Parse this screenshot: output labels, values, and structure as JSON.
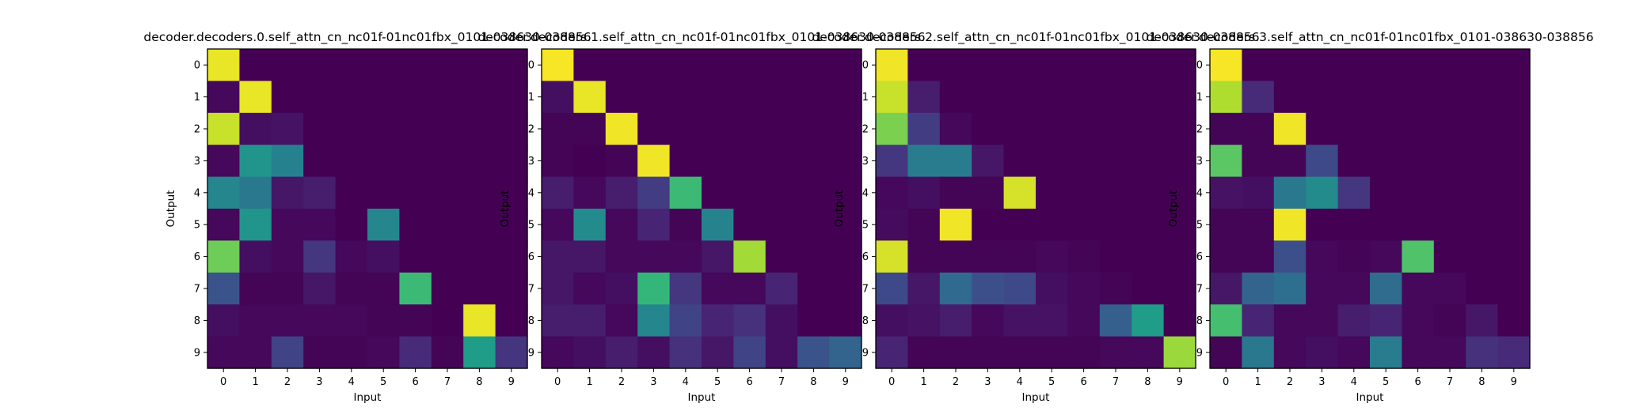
{
  "chart_data": [
    {
      "type": "heatmap",
      "title": "decoder.decoders.0.self_attn_cn_nc01f-01nc01fbx_0101-038630-038856",
      "xlabel": "Input",
      "ylabel": "Output",
      "x_ticks": [
        "0",
        "1",
        "2",
        "3",
        "4",
        "5",
        "6",
        "7",
        "8",
        "9"
      ],
      "y_ticks": [
        "0",
        "1",
        "2",
        "3",
        "4",
        "5",
        "6",
        "7",
        "8",
        "9"
      ],
      "colormap": "viridis",
      "value_range": [
        0,
        1
      ],
      "values": [
        [
          0.97,
          0.0,
          0.0,
          0.0,
          0.0,
          0.0,
          0.0,
          0.0,
          0.0,
          0.0
        ],
        [
          0.02,
          0.97,
          0.0,
          0.0,
          0.0,
          0.0,
          0.0,
          0.0,
          0.0,
          0.0
        ],
        [
          0.92,
          0.04,
          0.05,
          0.0,
          0.0,
          0.0,
          0.0,
          0.0,
          0.0,
          0.0
        ],
        [
          0.02,
          0.52,
          0.44,
          0.0,
          0.0,
          0.0,
          0.0,
          0.0,
          0.0,
          0.0
        ],
        [
          0.46,
          0.4,
          0.06,
          0.08,
          0.0,
          0.0,
          0.0,
          0.0,
          0.0,
          0.0
        ],
        [
          0.02,
          0.52,
          0.02,
          0.02,
          0.0,
          0.46,
          0.0,
          0.0,
          0.0,
          0.0
        ],
        [
          0.78,
          0.04,
          0.02,
          0.16,
          0.02,
          0.04,
          0.0,
          0.0,
          0.0,
          0.0
        ],
        [
          0.26,
          0.01,
          0.01,
          0.06,
          0.01,
          0.01,
          0.68,
          0.0,
          0.0,
          0.0
        ],
        [
          0.04,
          0.02,
          0.02,
          0.02,
          0.02,
          0.01,
          0.01,
          0.0,
          0.97,
          0.0
        ],
        [
          0.02,
          0.02,
          0.2,
          0.01,
          0.01,
          0.02,
          0.12,
          0.01,
          0.55,
          0.15
        ]
      ]
    },
    {
      "type": "heatmap",
      "title": "decoder.decoders.1.self_attn_cn_nc01f-01nc01fbx_0101-038630-038856",
      "xlabel": "Input",
      "ylabel": "Output",
      "x_ticks": [
        "0",
        "1",
        "2",
        "3",
        "4",
        "5",
        "6",
        "7",
        "8",
        "9"
      ],
      "y_ticks": [
        "0",
        "1",
        "2",
        "3",
        "4",
        "5",
        "6",
        "7",
        "8",
        "9"
      ],
      "colormap": "viridis",
      "value_range": [
        0,
        1
      ],
      "values": [
        [
          0.99,
          0.0,
          0.0,
          0.0,
          0.0,
          0.0,
          0.0,
          0.0,
          0.0,
          0.0
        ],
        [
          0.04,
          0.97,
          0.0,
          0.0,
          0.0,
          0.0,
          0.0,
          0.0,
          0.0,
          0.0
        ],
        [
          0.01,
          0.01,
          0.98,
          0.0,
          0.0,
          0.0,
          0.0,
          0.0,
          0.0,
          0.0
        ],
        [
          0.01,
          0.0,
          0.01,
          0.98,
          0.0,
          0.0,
          0.0,
          0.0,
          0.0,
          0.0
        ],
        [
          0.08,
          0.02,
          0.08,
          0.18,
          0.68,
          0.0,
          0.0,
          0.0,
          0.0,
          0.0
        ],
        [
          0.02,
          0.48,
          0.02,
          0.1,
          0.01,
          0.45,
          0.0,
          0.0,
          0.0,
          0.0
        ],
        [
          0.06,
          0.06,
          0.02,
          0.02,
          0.02,
          0.06,
          0.86,
          0.0,
          0.0,
          0.0
        ],
        [
          0.06,
          0.02,
          0.04,
          0.66,
          0.16,
          0.02,
          0.02,
          0.1,
          0.0,
          0.0
        ],
        [
          0.08,
          0.08,
          0.02,
          0.46,
          0.2,
          0.1,
          0.14,
          0.04,
          0.0,
          0.0
        ],
        [
          0.02,
          0.04,
          0.08,
          0.04,
          0.14,
          0.06,
          0.2,
          0.04,
          0.26,
          0.32
        ]
      ]
    },
    {
      "type": "heatmap",
      "title": "decoder.decoders.2.self_attn_cn_nc01f-01nc01fbx_0101-038630-038856",
      "xlabel": "Input",
      "ylabel": "Output",
      "x_ticks": [
        "0",
        "1",
        "2",
        "3",
        "4",
        "5",
        "6",
        "7",
        "8",
        "9"
      ],
      "y_ticks": [
        "0",
        "1",
        "2",
        "3",
        "4",
        "5",
        "6",
        "7",
        "8",
        "9"
      ],
      "colormap": "viridis",
      "value_range": [
        0,
        1
      ],
      "values": [
        [
          0.98,
          0.0,
          0.0,
          0.0,
          0.0,
          0.0,
          0.0,
          0.0,
          0.0,
          0.0
        ],
        [
          0.92,
          0.08,
          0.0,
          0.0,
          0.0,
          0.0,
          0.0,
          0.0,
          0.0,
          0.0
        ],
        [
          0.8,
          0.18,
          0.02,
          0.0,
          0.0,
          0.0,
          0.0,
          0.0,
          0.0,
          0.0
        ],
        [
          0.16,
          0.42,
          0.42,
          0.06,
          0.0,
          0.0,
          0.0,
          0.0,
          0.0,
          0.0
        ],
        [
          0.02,
          0.04,
          0.01,
          0.01,
          0.94,
          0.0,
          0.0,
          0.0,
          0.0,
          0.0
        ],
        [
          0.03,
          0.01,
          0.98,
          0.0,
          0.0,
          0.0,
          0.0,
          0.0,
          0.0,
          0.0
        ],
        [
          0.94,
          0.01,
          0.01,
          0.01,
          0.01,
          0.02,
          0.01,
          0.0,
          0.0,
          0.0
        ],
        [
          0.22,
          0.06,
          0.34,
          0.24,
          0.22,
          0.04,
          0.02,
          0.01,
          0.0,
          0.0
        ],
        [
          0.04,
          0.05,
          0.08,
          0.02,
          0.05,
          0.05,
          0.02,
          0.3,
          0.55,
          0.0
        ],
        [
          0.1,
          0.01,
          0.01,
          0.01,
          0.01,
          0.01,
          0.01,
          0.02,
          0.02,
          0.85
        ]
      ]
    },
    {
      "type": "heatmap",
      "title": "decoder.decoders.3.self_attn_cn_nc01f-01nc01fbx_0101-038630-038856",
      "xlabel": "Input",
      "ylabel": "Output",
      "x_ticks": [
        "0",
        "1",
        "2",
        "3",
        "4",
        "5",
        "6",
        "7",
        "8",
        "9"
      ],
      "y_ticks": [
        "0",
        "1",
        "2",
        "3",
        "4",
        "5",
        "6",
        "7",
        "8",
        "9"
      ],
      "colormap": "viridis",
      "value_range": [
        0,
        1
      ],
      "values": [
        [
          0.99,
          0.0,
          0.0,
          0.0,
          0.0,
          0.0,
          0.0,
          0.0,
          0.0,
          0.0
        ],
        [
          0.88,
          0.12,
          0.0,
          0.0,
          0.0,
          0.0,
          0.0,
          0.0,
          0.0,
          0.0
        ],
        [
          0.01,
          0.01,
          0.98,
          0.0,
          0.0,
          0.0,
          0.0,
          0.0,
          0.0,
          0.0
        ],
        [
          0.74,
          0.01,
          0.01,
          0.22,
          0.0,
          0.0,
          0.0,
          0.0,
          0.0,
          0.0
        ],
        [
          0.05,
          0.04,
          0.4,
          0.48,
          0.16,
          0.0,
          0.0,
          0.0,
          0.0,
          0.0
        ],
        [
          0.01,
          0.01,
          0.98,
          0.0,
          0.0,
          0.0,
          0.0,
          0.0,
          0.0,
          0.0
        ],
        [
          0.01,
          0.01,
          0.24,
          0.02,
          0.01,
          0.02,
          0.72,
          0.0,
          0.0,
          0.0
        ],
        [
          0.06,
          0.32,
          0.36,
          0.02,
          0.02,
          0.35,
          0.02,
          0.02,
          0.0,
          0.0
        ],
        [
          0.7,
          0.1,
          0.02,
          0.02,
          0.08,
          0.1,
          0.02,
          0.01,
          0.06,
          0.0
        ],
        [
          0.01,
          0.4,
          0.02,
          0.04,
          0.02,
          0.42,
          0.02,
          0.02,
          0.14,
          0.12
        ]
      ]
    }
  ]
}
